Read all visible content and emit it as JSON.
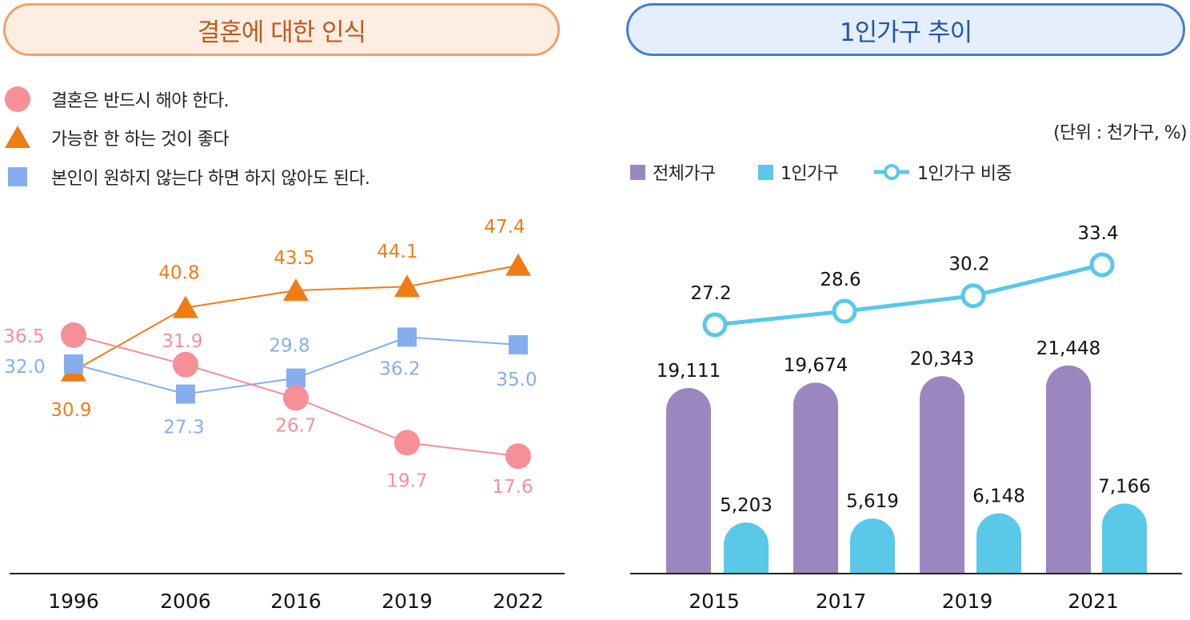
{
  "colors": {
    "must": "#f78f96",
    "better": "#f07c16",
    "optional": "#86aeee",
    "total": "#9c86c0",
    "single": "#5ac8e8",
    "share_line": "#5ac8e8"
  },
  "chart_data": [
    {
      "type": "line",
      "title": "결혼에 대한 인식",
      "categories": [
        "1996",
        "2006",
        "2016",
        "2019",
        "2022"
      ],
      "series": [
        {
          "name": "결혼은 반드시 해야 한다.",
          "marker": "circle",
          "values": [
            36.5,
            31.9,
            26.7,
            19.7,
            17.6
          ]
        },
        {
          "name": "가능한 한 하는 것이 좋다",
          "marker": "triangle",
          "values": [
            30.9,
            40.8,
            43.5,
            44.1,
            47.4
          ]
        },
        {
          "name": "본인이 원하지 않는다 하면 하지 않아도 된다.",
          "marker": "square",
          "values": [
            32.0,
            27.3,
            29.8,
            36.2,
            35.0
          ]
        }
      ],
      "labels": {
        "must": [
          "36.5",
          "31.9",
          "26.7",
          "19.7",
          "17.6"
        ],
        "better": [
          "30.9",
          "40.8",
          "43.5",
          "44.1",
          "47.4"
        ],
        "optional": [
          "32.0",
          "27.3",
          "29.8",
          "36.2",
          "35.0"
        ]
      }
    },
    {
      "type": "bar",
      "title": "1인가구 추이",
      "unit": "(단위 : 천가구, %)",
      "categories": [
        "2015",
        "2017",
        "2019",
        "2021"
      ],
      "series": [
        {
          "name": "전체가구",
          "values": [
            19111,
            19674,
            20343,
            21448
          ],
          "labels": [
            "19,111",
            "19,674",
            "20,343",
            "21,448"
          ]
        },
        {
          "name": "1인가구",
          "values": [
            5203,
            5619,
            6148,
            7166
          ],
          "labels": [
            "5,203",
            "5,619",
            "6,148",
            "7,166"
          ]
        },
        {
          "name": "1인가구 비중",
          "type": "line",
          "values": [
            27.2,
            28.6,
            30.2,
            33.4
          ],
          "labels": [
            "27.2",
            "28.6",
            "30.2",
            "33.4"
          ]
        }
      ]
    }
  ]
}
